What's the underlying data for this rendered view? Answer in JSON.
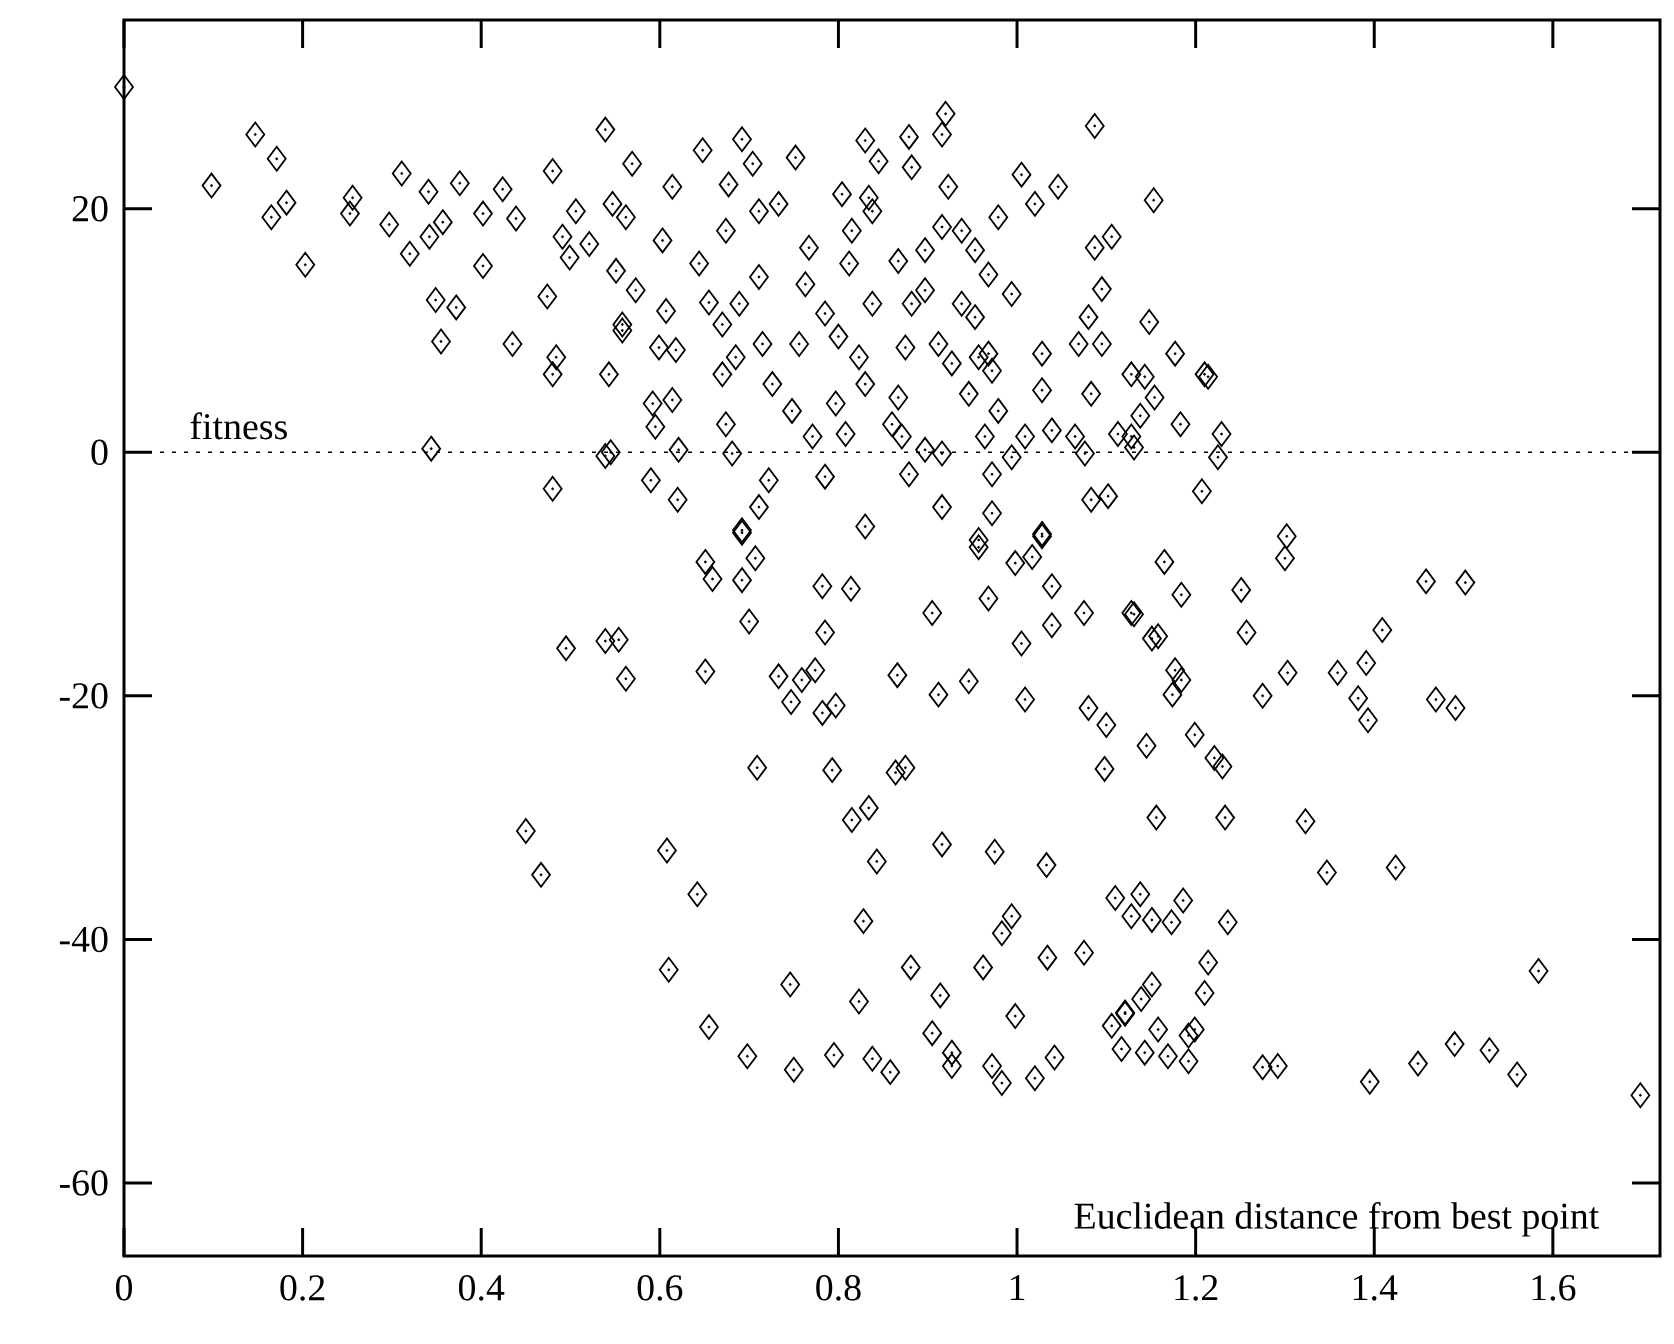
{
  "chart_data": {
    "type": "scatter",
    "xlabel": "Euclidean distance from best point",
    "ylabel": "fitness",
    "xlim": [
      0,
      1.72
    ],
    "ylim": [
      -66,
      35.5
    ],
    "xticks": [
      0,
      0.2,
      0.4,
      0.6,
      0.8,
      1,
      1.2,
      1.4,
      1.6
    ],
    "yticks": [
      -60,
      -40,
      -20,
      0,
      20
    ],
    "marker": "diamond",
    "color": "#000000",
    "ref_lines": [
      {
        "axis": "y",
        "value": 0,
        "line_style": "dotted",
        "color": "#000000"
      }
    ],
    "x": [
      0,
      0.098,
      0.147,
      0.171,
      0.182,
      0.165,
      0.203,
      0.256,
      0.253,
      0.297,
      0.311,
      0.341,
      0.342,
      0.32,
      0.357,
      0.376,
      0.402,
      0.424,
      0.439,
      0.402,
      0.349,
      0.372,
      0.355,
      0.435,
      0.474,
      0.484,
      0.48,
      0.539,
      0.543,
      0.344,
      0.539,
      0.48,
      0.48,
      0.506,
      0.491,
      0.521,
      0.499,
      0.551,
      0.558,
      0.569,
      0.547,
      0.562,
      0.614,
      0.648,
      0.603,
      0.644,
      0.573,
      0.655,
      0.692,
      0.704,
      0.677,
      0.752,
      0.711,
      0.674,
      0.733,
      0.767,
      0.711,
      0.763,
      0.689,
      0.67,
      0.607,
      0.558,
      0.599,
      0.618,
      0.592,
      0.614,
      0.595,
      0.545,
      0.621,
      0.59,
      0.62,
      0.674,
      0.681,
      0.722,
      0.711,
      0.692,
      0.685,
      0.715,
      0.67,
      0.726,
      0.748,
      0.756,
      0.785,
      0.771,
      0.785,
      0.804,
      0.834,
      0.815,
      0.838,
      0.812,
      0.838,
      0.8,
      0.823,
      0.83,
      0.797,
      0.808,
      0.83,
      0.83,
      0.845,
      0.879,
      0.882,
      0.92,
      0.916,
      0.923,
      0.867,
      0.897,
      0.916,
      0.938,
      0.953,
      0.979,
      0.968,
      0.994,
      0.882,
      0.897,
      0.938,
      0.953,
      0.875,
      0.912,
      0.927,
      0.957,
      0.972,
      0.946,
      0.968,
      0.867,
      0.86,
      0.871,
      0.897,
      0.879,
      0.916,
      0.964,
      0.994,
      0.979,
      1.009,
      1.028,
      1.028,
      1.039,
      1.065,
      1.076,
      0.972,
      0.916,
      0.972,
      0.957,
      1.028,
      1.083,
      1.005,
      1.02,
      1.046,
      1.087,
      1.087,
      1.106,
      1.095,
      1.08,
      1.069,
      1.095,
      1.083,
      1.128,
      1.128,
      1.153,
      1.148,
      1.177,
      1.143,
      1.21,
      1.214,
      1.154,
      1.138,
      1.183,
      1.229,
      1.225,
      1.113,
      1.131,
      1.207,
      1.302,
      1.102,
      0.495,
      0.539,
      0.554,
      0.562,
      0.45,
      0.467,
      0.692,
      0.651,
      0.659,
      0.707,
      0.692,
      0.7,
      0.782,
      0.814,
      0.785,
      0.651,
      0.733,
      0.759,
      0.774,
      0.747,
      0.782,
      0.797,
      0.905,
      0.866,
      0.912,
      0.946,
      1.009,
      0.968,
      0.957,
      0.998,
      1.017,
      1.028,
      1.039,
      1.039,
      1.005,
      1.075,
      1.128,
      1.08,
      1.1,
      1.098,
      0.709,
      0.793,
      0.864,
      0.875,
      0.834,
      0.815,
      0.843,
      0.608,
      0.642,
      0.828,
      0.916,
      0.975,
      1.033,
      0.61,
      0.746,
      0.823,
      0.881,
      0.914,
      0.962,
      0.994,
      0.983,
      1.034,
      1.075,
      0.998,
      0.655,
      0.698,
      0.75,
      0.795,
      0.838,
      0.858,
      0.905,
      0.927,
      0.927,
      0.972,
      0.983,
      1.02,
      1.042,
      1.106,
      1.121,
      1.117,
      1.3,
      1.165,
      1.184,
      1.251,
      1.131,
      1.151,
      1.158,
      1.257,
      1.409,
      1.458,
      1.502,
      1.177,
      1.184,
      1.174,
      1.303,
      1.275,
      1.359,
      1.391,
      1.382,
      1.393,
      1.469,
      1.491,
      1.199,
      1.145,
      1.221,
      1.23,
      1.156,
      1.233,
      1.323,
      1.347,
      1.424,
      1.11,
      1.138,
      1.128,
      1.151,
      1.173,
      1.186,
      1.236,
      1.214,
      1.21,
      1.151,
      1.139,
      1.121,
      1.158,
      1.143,
      1.169,
      1.192,
      1.192,
      1.199,
      1.275,
      1.292,
      1.395,
      1.449,
      1.49,
      1.529,
      1.56,
      1.584,
      1.698
    ],
    "values": [
      30,
      21.9,
      26.1,
      24.1,
      20.5,
      19.3,
      15.4,
      20.9,
      19.6,
      18.7,
      22.9,
      21.4,
      17.7,
      16.3,
      18.9,
      22.1,
      19.6,
      21.6,
      19.2,
      15.3,
      12.5,
      11.9,
      9.1,
      8.9,
      12.8,
      7.8,
      6.4,
      26.5,
      6.4,
      0.3,
      -0.3,
      -3,
      23.1,
      19.8,
      17.7,
      17.1,
      16,
      14.9,
      10,
      23.7,
      20.4,
      19.3,
      21.8,
      24.8,
      17.4,
      15.5,
      13.3,
      12.3,
      25.7,
      23.7,
      22,
      24.2,
      19.8,
      18.2,
      20.4,
      16.8,
      14.4,
      13.8,
      12.2,
      10.5,
      11.6,
      10.5,
      8.6,
      8.4,
      4,
      4.3,
      2.1,
      0,
      0.2,
      -2.3,
      -3.9,
      2.3,
      -0.1,
      -2.3,
      -4.5,
      -6.4,
      7.8,
      8.9,
      6.4,
      5.6,
      3.4,
      8.9,
      11.4,
      1.3,
      -2,
      21.2,
      20.9,
      18.2,
      19.8,
      15.5,
      12.2,
      9.5,
      7.8,
      5.6,
      4,
      1.5,
      -6.1,
      25.6,
      23.9,
      25.9,
      23.4,
      27.8,
      26.1,
      21.8,
      15.7,
      16.6,
      18.5,
      18.2,
      16.6,
      19.3,
      14.6,
      13,
      12.2,
      13.3,
      12.2,
      11.1,
      8.6,
      8.9,
      7.3,
      7.8,
      6.7,
      4.8,
      8.1,
      4.5,
      2.3,
      1.3,
      0.2,
      -1.8,
      -0.1,
      1.3,
      -0.4,
      3.4,
      1.3,
      8.1,
      5.1,
      1.8,
      1.3,
      -0.1,
      -1.8,
      -4.5,
      -5,
      -7.2,
      -6.7,
      -3.9,
      22.8,
      20.4,
      21.8,
      26.8,
      16.8,
      17.7,
      13.4,
      11.1,
      8.9,
      8.9,
      4.8,
      6.4,
      1.3,
      20.7,
      10.7,
      8.1,
      6.2,
      6.4,
      6.2,
      4.5,
      3,
      2.3,
      1.5,
      -0.4,
      1.5,
      0.4,
      -3.2,
      -6.9,
      -3.6,
      -16.1,
      -15.5,
      -15.4,
      -18.6,
      -31.1,
      -34.7,
      -6.6,
      -9,
      -10.4,
      -8.7,
      -10.5,
      -13.9,
      -11,
      -11.2,
      -14.8,
      -18,
      -18.4,
      -18.7,
      -17.9,
      -20.5,
      -21.4,
      -20.8,
      -13.2,
      -18.3,
      -19.9,
      -18.8,
      -20.3,
      -12,
      -7.8,
      -9.1,
      -8.6,
      -6.9,
      -11,
      -14.2,
      -15.7,
      -13.2,
      -13.2,
      -21,
      -22.4,
      -26,
      -25.9,
      -26.1,
      -26.3,
      -25.9,
      -29.2,
      -30.2,
      -33.6,
      -32.7,
      -36.3,
      -38.5,
      -32.2,
      -32.8,
      -33.9,
      -42.5,
      -43.7,
      -45.1,
      -42.3,
      -44.6,
      -42.3,
      -38.1,
      -39.5,
      -41.5,
      -41.1,
      -46.3,
      -47.2,
      -49.6,
      -50.7,
      -49.5,
      -49.8,
      -50.9,
      -47.7,
      -49.3,
      -50.4,
      -50.4,
      -51.8,
      -51.4,
      -49.7,
      -47.1,
      -46,
      -49,
      -8.7,
      -9,
      -11.7,
      -11.3,
      -13.3,
      -15.3,
      -15.1,
      -14.8,
      -14.6,
      -10.6,
      -10.7,
      -17.9,
      -18.7,
      -19.9,
      -18.1,
      -20,
      -18.1,
      -17.3,
      -20.2,
      -22,
      -20.3,
      -21,
      -23.2,
      -24.1,
      -25.1,
      -25.8,
      -30,
      -30,
      -30.3,
      -34.5,
      -34.1,
      -36.6,
      -36.3,
      -38.1,
      -38.4,
      -38.6,
      -36.8,
      -38.6,
      -41.9,
      -44.4,
      -43.7,
      -44.9,
      -46.1,
      -47.4,
      -49.3,
      -49.6,
      -50,
      -47.9,
      -47.4,
      -50.5,
      -50.4,
      -51.7,
      -50.2,
      -48.6,
      -49.1,
      -51.1,
      -42.6,
      -52.8
    ]
  }
}
